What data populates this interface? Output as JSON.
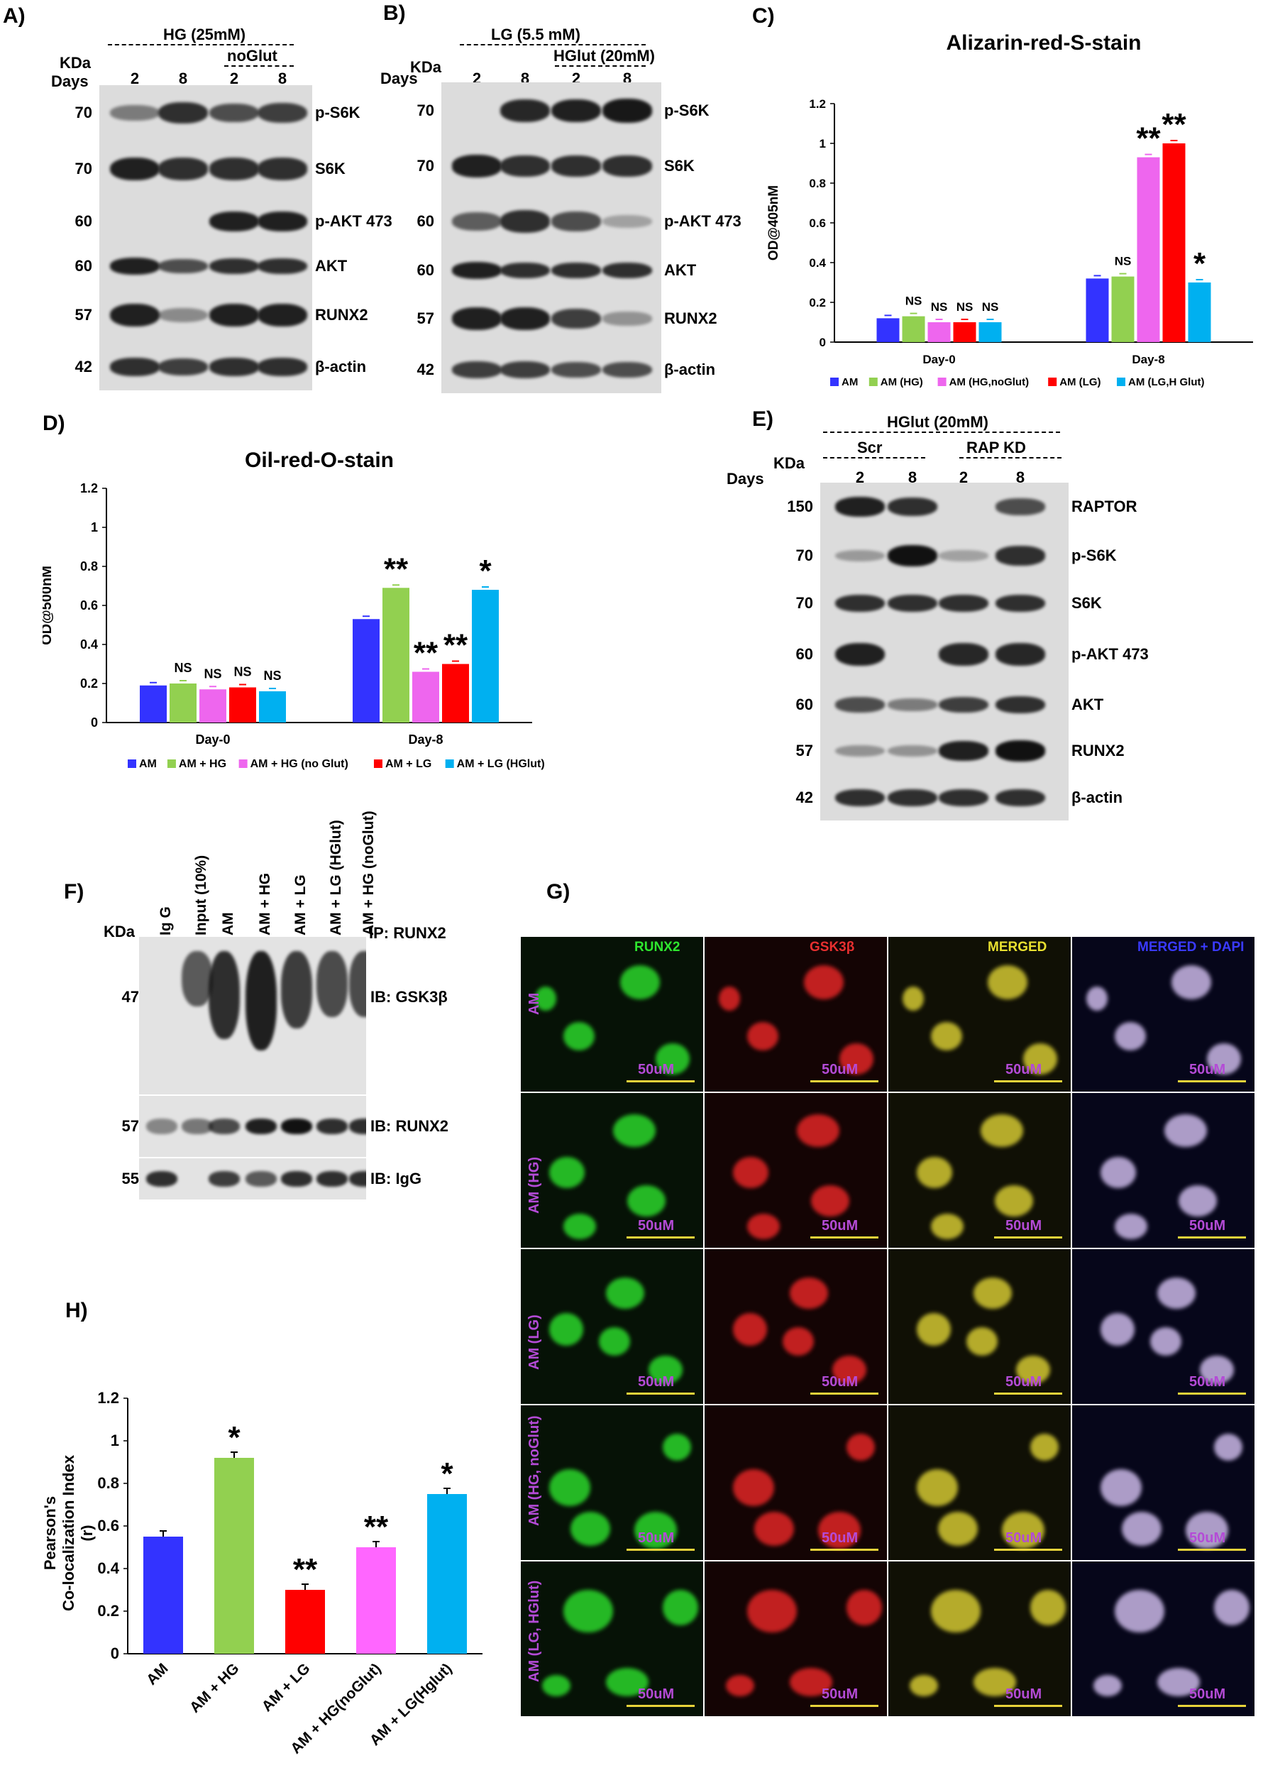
{
  "panelA": {
    "label": "A)",
    "kda": "KDa",
    "days": "Days",
    "hg": "HG (25mM)",
    "noglut": "noGlut",
    "lanes": [
      "2",
      "8",
      "2",
      "8"
    ],
    "rows": [
      {
        "name": "p-S6K",
        "kda": "70"
      },
      {
        "name": "S6K",
        "kda": "70"
      },
      {
        "name": "p-AKT 473",
        "kda": "60"
      },
      {
        "name": "AKT",
        "kda": "60"
      },
      {
        "name": "RUNX2",
        "kda": "57"
      },
      {
        "name": "β-actin",
        "kda": "42"
      }
    ]
  },
  "panelB": {
    "label": "B)",
    "kda": "KDa",
    "days": "Days",
    "lg": "LG (5.5 mM)",
    "hglut": "HGlut (20mM)",
    "lanes": [
      "2",
      "8",
      "2",
      "8"
    ],
    "rows": [
      {
        "name": "p-S6K",
        "kda": "70"
      },
      {
        "name": "S6K",
        "kda": "70"
      },
      {
        "name": "p-AKT 473",
        "kda": "60"
      },
      {
        "name": "AKT",
        "kda": "60"
      },
      {
        "name": "RUNX2",
        "kda": "57"
      },
      {
        "name": "β-actin",
        "kda": "42"
      }
    ]
  },
  "panelE": {
    "label": "E)",
    "kda": "KDa",
    "days": "Days",
    "hglut": "HGlut (20mM)",
    "scr": "Scr",
    "rapkd": "RAP KD",
    "lanes": [
      "2",
      "8",
      "2",
      "8"
    ],
    "rows": [
      {
        "name": "RAPTOR",
        "kda": "150"
      },
      {
        "name": "p-S6K",
        "kda": "70"
      },
      {
        "name": "S6K",
        "kda": "70"
      },
      {
        "name": "p-AKT 473",
        "kda": "60"
      },
      {
        "name": "AKT",
        "kda": "60"
      },
      {
        "name": "RUNX2",
        "kda": "57"
      },
      {
        "name": "β-actin",
        "kda": "42"
      }
    ]
  },
  "panelF": {
    "label": "F)",
    "kda": "KDa",
    "lanes": [
      "Ig G",
      "Input (10%)",
      "AM",
      "AM + HG",
      "AM + LG",
      "AM + LG (HGlut)",
      "AM + HG (noGlut)"
    ],
    "ip": "IP: RUNX2",
    "rows": [
      {
        "name": "IB: GSK3β",
        "kda": "47"
      },
      {
        "name": "IB: RUNX2",
        "kda": "57"
      },
      {
        "name": "IB: IgG",
        "kda": "55"
      }
    ]
  },
  "panelG": {
    "label": "G)",
    "columns": [
      "RUNX2",
      "GSK3β",
      "MERGED",
      "MERGED + DAPI"
    ],
    "column_colors": [
      "#2ee62e",
      "#e83030",
      "#e8e030",
      "#3a3aff"
    ],
    "rows": [
      "AM",
      "AM (HG)",
      "AM (LG)",
      "AM (HG, noGlut)",
      "AM (LG, HGlut)"
    ],
    "scale": "50uM"
  },
  "chart_data": [
    {
      "panel": "C)",
      "type": "bar",
      "title": "Alizarin-red-S-stain",
      "ylabel": "OD@405nM",
      "ylim": [
        0,
        1.2
      ],
      "yticks": [
        "0",
        "0.2",
        "0.4",
        "0.6",
        "0.8",
        "1",
        "1.2"
      ],
      "categories": [
        "Day-0",
        "Day-8"
      ],
      "series": [
        {
          "name": "AM",
          "color": "#3333ff",
          "values": [
            0.12,
            0.32
          ],
          "labels": [
            "",
            ""
          ]
        },
        {
          "name": "AM (HG)",
          "color": "#92d050",
          "values": [
            0.13,
            0.33
          ],
          "labels": [
            "NS",
            "NS"
          ]
        },
        {
          "name": "AM (HG,noGlut)",
          "color": "#ee66ee",
          "values": [
            0.1,
            0.93
          ],
          "labels": [
            "NS",
            "**"
          ]
        },
        {
          "name": "AM (LG)",
          "color": "#ff0000",
          "values": [
            0.1,
            1.0
          ],
          "labels": [
            "NS",
            "**"
          ]
        },
        {
          "name": "AM (LG,H Glut)",
          "color": "#00b0f0",
          "values": [
            0.1,
            0.3
          ],
          "labels": [
            "NS",
            "*"
          ]
        }
      ],
      "legend": "bottom"
    },
    {
      "panel": "D)",
      "type": "bar",
      "title": "Oil-red-O-stain",
      "ylabel": "OD@500nM",
      "ylim": [
        0,
        1.2
      ],
      "yticks": [
        "0",
        "0.2",
        "0.4",
        "0.6",
        "0.8",
        "1",
        "1.2"
      ],
      "categories": [
        "Day-0",
        "Day-8"
      ],
      "series": [
        {
          "name": "AM",
          "color": "#3333ff",
          "values": [
            0.19,
            0.53
          ],
          "labels": [
            "",
            ""
          ]
        },
        {
          "name": "AM + HG",
          "color": "#92d050",
          "values": [
            0.2,
            0.69
          ],
          "labels": [
            "NS",
            "**"
          ]
        },
        {
          "name": "AM + HG (no Glut)",
          "color": "#ee66ee",
          "values": [
            0.17,
            0.26
          ],
          "labels": [
            "NS",
            "**"
          ]
        },
        {
          "name": "AM + LG",
          "color": "#ff0000",
          "values": [
            0.18,
            0.3
          ],
          "labels": [
            "NS",
            "**"
          ]
        },
        {
          "name": "AM + LG (HGlut)",
          "color": "#00b0f0",
          "values": [
            0.16,
            0.68
          ],
          "labels": [
            "NS",
            "*"
          ]
        }
      ],
      "legend": "bottom"
    },
    {
      "panel": "H)",
      "type": "bar",
      "title": "",
      "ylabel": "Pearson's Co-localization Index (r)",
      "ylabel_lines": [
        "Pearson's",
        "Co-localization Index",
        "(r)"
      ],
      "ylim": [
        0,
        1.2
      ],
      "yticks": [
        "0",
        "0.2",
        "0.4",
        "0.6",
        "0.8",
        "1",
        "1.2"
      ],
      "categories": [
        "AM",
        "AM + HG",
        "AM + LG",
        "AM + HG(noGlut)",
        "AM + LG(Hglut)"
      ],
      "values": [
        0.55,
        0.92,
        0.3,
        0.5,
        0.75
      ],
      "colors": [
        "#3333ff",
        "#92d050",
        "#ff0000",
        "#ff66ff",
        "#00b0f0"
      ],
      "labels": [
        "",
        "*",
        "**",
        "**",
        "*"
      ]
    }
  ]
}
